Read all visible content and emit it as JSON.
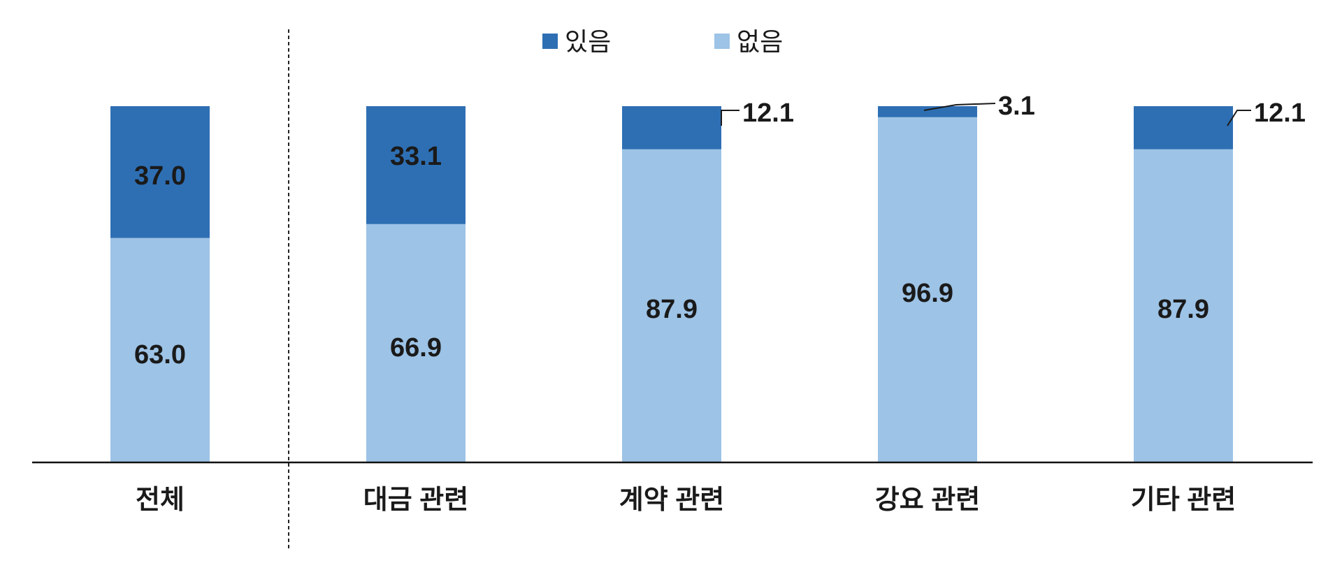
{
  "chart_data": {
    "type": "bar",
    "stacked": true,
    "percent": true,
    "categories": [
      "전체",
      "대금 관련",
      "계약 관련",
      "강요 관련",
      "기타 관련"
    ],
    "series": [
      {
        "name": "있음",
        "values": [
          37.0,
          33.1,
          12.1,
          3.1,
          12.1
        ],
        "color": "#2e6fb4"
      },
      {
        "name": "없음",
        "values": [
          63.0,
          66.9,
          87.9,
          96.9,
          87.9
        ],
        "color": "#9dc3e6"
      }
    ],
    "data_labels": {
      "있음": [
        "37.0",
        "33.1",
        "12.1",
        "3.1",
        "12.1"
      ],
      "없음": [
        "63.0",
        "66.9",
        "87.9",
        "96.9",
        "87.9"
      ]
    },
    "ylim": [
      0,
      100
    ],
    "legend_position": "top-center",
    "grid": false,
    "separator_after_category": 0
  }
}
